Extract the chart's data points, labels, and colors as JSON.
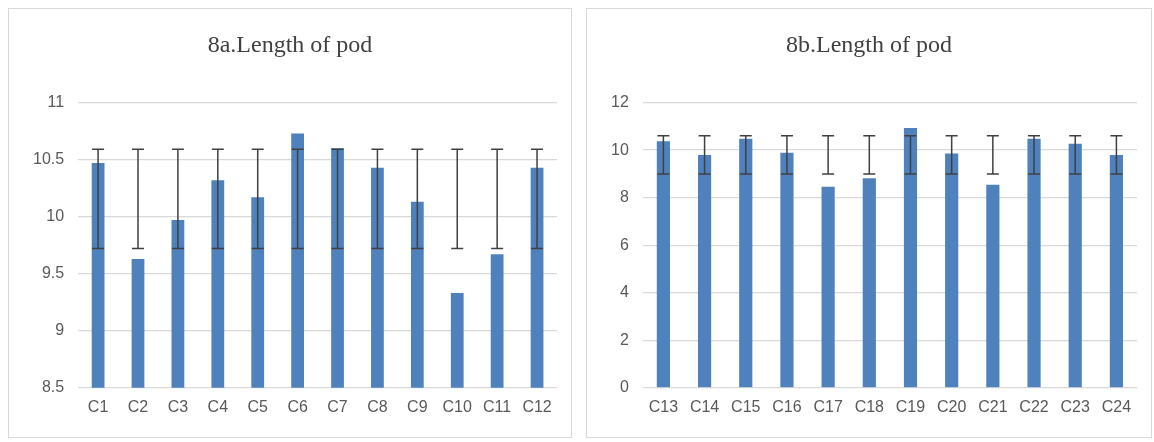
{
  "chart_data": [
    {
      "type": "bar",
      "title": "8a.Length of pod",
      "categories": [
        "C1",
        "C2",
        "C3",
        "C4",
        "C5",
        "C6",
        "C7",
        "C8",
        "C9",
        "C10",
        "C11",
        "C12"
      ],
      "values": [
        10.47,
        9.63,
        9.97,
        10.32,
        10.17,
        10.73,
        10.6,
        10.43,
        10.13,
        9.33,
        9.67,
        10.43
      ],
      "errors": [
        [
          9.72,
          10.59
        ],
        [
          9.72,
          10.59
        ],
        [
          9.72,
          10.59
        ],
        [
          9.72,
          10.59
        ],
        [
          9.72,
          10.59
        ],
        [
          9.72,
          10.59
        ],
        [
          9.72,
          10.59
        ],
        [
          9.72,
          10.59
        ],
        [
          9.72,
          10.59
        ],
        [
          9.72,
          10.59
        ],
        [
          9.72,
          10.59
        ],
        [
          9.72,
          10.59
        ]
      ],
      "color": "#4f81bd",
      "ylim": [
        8.5,
        11
      ],
      "yticks": [
        8.5,
        9,
        9.5,
        10,
        10.5,
        11
      ],
      "grid": "y",
      "legend": false
    },
    {
      "type": "bar",
      "title": "8b.Length of pod",
      "categories": [
        "C13",
        "C14",
        "C15",
        "C16",
        "C17",
        "C18",
        "C19",
        "C20",
        "C21",
        "C22",
        "C23",
        "C24"
      ],
      "values": [
        10.37,
        9.8,
        10.48,
        9.89,
        8.46,
        8.82,
        10.93,
        9.86,
        8.54,
        10.48,
        10.27,
        9.8
      ],
      "errors": [
        [
          9.0,
          10.6
        ],
        [
          9.0,
          10.6
        ],
        [
          9.0,
          10.6
        ],
        [
          9.0,
          10.6
        ],
        [
          9.0,
          10.6
        ],
        [
          9.0,
          10.6
        ],
        [
          9.0,
          10.6
        ],
        [
          9.0,
          10.6
        ],
        [
          9.0,
          10.6
        ],
        [
          9.0,
          10.6
        ],
        [
          9.0,
          10.6
        ],
        [
          9.0,
          10.6
        ]
      ],
      "color": "#4f81bd",
      "ylim": [
        0,
        12
      ],
      "yticks": [
        0,
        2,
        4,
        6,
        8,
        10,
        12
      ],
      "grid": "y",
      "legend": false
    }
  ]
}
